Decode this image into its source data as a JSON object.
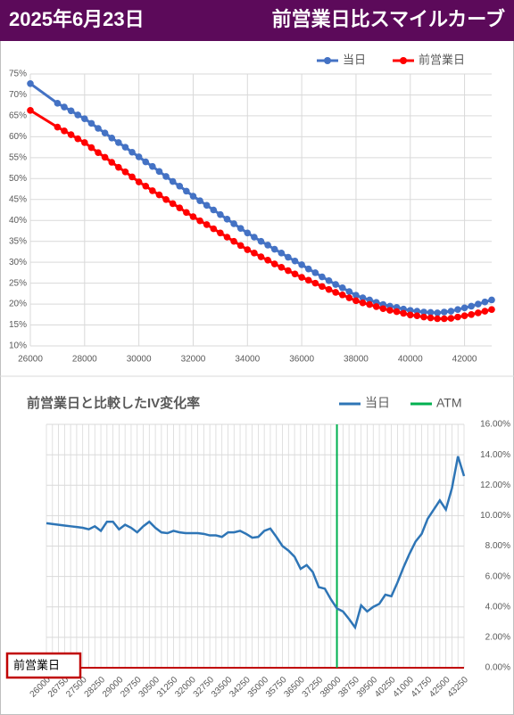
{
  "header": {
    "date": "2025年6月23日",
    "title": "前営業日比スマイルカーブ"
  },
  "chart_data": [
    {
      "type": "line",
      "markers": true,
      "grid": true,
      "x": [
        26000,
        27000,
        27250,
        27500,
        27750,
        28000,
        28250,
        28500,
        28750,
        29000,
        29250,
        29500,
        29750,
        30000,
        30250,
        30500,
        30750,
        31000,
        31250,
        31500,
        31750,
        32000,
        32250,
        32500,
        32750,
        33000,
        33250,
        33500,
        33750,
        34000,
        34250,
        34500,
        34750,
        35000,
        35250,
        35500,
        35750,
        36000,
        36250,
        36500,
        36750,
        37000,
        37250,
        37500,
        37750,
        38000,
        38250,
        38500,
        38750,
        39000,
        39250,
        39500,
        39750,
        40000,
        40250,
        40500,
        40750,
        41000,
        41250,
        41500,
        41750,
        42000,
        42250,
        42500,
        42750,
        43000
      ],
      "series": [
        {
          "name": "当日",
          "color": "#4472c4",
          "values": [
            72.7,
            68.0,
            67.1,
            66.2,
            65.2,
            64.3,
            63.2,
            62.0,
            60.9,
            59.7,
            58.6,
            57.5,
            56.3,
            55.2,
            54.0,
            52.9,
            51.7,
            50.5,
            49.3,
            48.2,
            47.0,
            45.8,
            44.7,
            43.6,
            42.5,
            41.4,
            40.3,
            39.2,
            38.1,
            37.0,
            36.0,
            35.0,
            34.1,
            33.1,
            32.2,
            31.2,
            30.3,
            29.4,
            28.4,
            27.5,
            26.5,
            25.6,
            24.7,
            23.9,
            23.0,
            22.1,
            21.5,
            21.0,
            20.4,
            19.9,
            19.5,
            19.2,
            18.8,
            18.5,
            18.3,
            18.1,
            18.0,
            17.9,
            18.1,
            18.3,
            18.7,
            19.1,
            19.5,
            20.0,
            20.5,
            21.0
          ]
        },
        {
          "name": "前営業日",
          "color": "#ff0000",
          "values": [
            66.3,
            62.3,
            61.4,
            60.5,
            59.5,
            58.6,
            57.4,
            56.2,
            55.1,
            53.9,
            52.7,
            51.6,
            50.4,
            49.2,
            48.2,
            47.1,
            46.1,
            45.0,
            44.0,
            43.0,
            41.9,
            40.9,
            39.9,
            39.0,
            38.0,
            37.0,
            36.0,
            35.0,
            34.0,
            33.0,
            32.2,
            31.3,
            30.5,
            29.6,
            28.8,
            28.0,
            27.2,
            26.4,
            25.7,
            25.0,
            24.2,
            23.5,
            22.8,
            22.2,
            21.5,
            20.8,
            20.3,
            19.9,
            19.4,
            18.9,
            18.5,
            18.2,
            17.8,
            17.4,
            17.2,
            16.9,
            16.7,
            16.5,
            16.5,
            16.6,
            16.9,
            17.2,
            17.5,
            17.9,
            18.3,
            18.7
          ]
        }
      ],
      "xlim": [
        26000,
        43000
      ],
      "xticks": [
        26000,
        28000,
        30000,
        32000,
        34000,
        36000,
        38000,
        40000,
        42000
      ],
      "ylim": [
        10,
        75
      ],
      "yticks": [
        {
          "value": 10,
          "label": "10%"
        },
        {
          "value": 15,
          "label": "15%"
        },
        {
          "value": 20,
          "label": "20%"
        },
        {
          "value": 25,
          "label": "25%"
        },
        {
          "value": 30,
          "label": "30%"
        },
        {
          "value": 35,
          "label": "35%"
        },
        {
          "value": 40,
          "label": "40%"
        },
        {
          "value": 45,
          "label": "45%"
        },
        {
          "value": 50,
          "label": "50%"
        },
        {
          "value": 55,
          "label": "55%"
        },
        {
          "value": 60,
          "label": "60%"
        },
        {
          "value": 65,
          "label": "65%"
        },
        {
          "value": 70,
          "label": "70%"
        },
        {
          "value": 75,
          "label": "75%"
        }
      ]
    },
    {
      "type": "line",
      "markers": false,
      "grid": true,
      "y_axis_side": "right",
      "title": "前営業日と比較したIV変化率",
      "x": [
        26000,
        26250,
        26500,
        26750,
        27000,
        27250,
        27500,
        27750,
        28000,
        28250,
        28500,
        28750,
        29000,
        29250,
        29500,
        29750,
        30000,
        30250,
        30500,
        30750,
        31000,
        31250,
        31500,
        31750,
        32000,
        32250,
        32500,
        32750,
        33000,
        33250,
        33500,
        33750,
        34000,
        34250,
        34500,
        34750,
        35000,
        35250,
        35500,
        35750,
        36000,
        36250,
        36500,
        36750,
        37000,
        37250,
        37500,
        37750,
        38000,
        38250,
        38500,
        38750,
        39000,
        39250,
        39500,
        39750,
        40000,
        40250,
        40500,
        40750,
        41000,
        41250,
        41500,
        41750,
        42000,
        42250,
        42500,
        42750,
        43000,
        43250
      ],
      "series": [
        {
          "name": "当日",
          "color": "#2e75b6",
          "values": [
            9.5,
            9.45,
            9.4,
            9.35,
            9.3,
            9.25,
            9.2,
            9.1,
            9.3,
            9.0,
            9.6,
            9.6,
            9.1,
            9.4,
            9.2,
            8.9,
            9.3,
            9.6,
            9.2,
            8.9,
            8.85,
            9.0,
            8.9,
            8.85,
            8.85,
            8.85,
            8.8,
            8.7,
            8.7,
            8.6,
            8.9,
            8.9,
            9.0,
            8.8,
            8.55,
            8.6,
            9.0,
            9.15,
            8.6,
            8.0,
            7.7,
            7.3,
            6.5,
            6.75,
            6.3,
            5.3,
            5.2,
            4.5,
            3.9,
            3.7,
            3.2,
            2.65,
            4.1,
            3.7,
            4.0,
            4.2,
            4.8,
            4.7,
            5.6,
            6.6,
            7.5,
            8.3,
            8.8,
            9.8,
            10.4,
            11.0,
            10.4,
            11.8,
            13.9,
            12.6
          ]
        }
      ],
      "vlines": [
        {
          "name": "ATM",
          "color": "#00b050",
          "x": 38000
        }
      ],
      "baseline": {
        "label": "前営業日",
        "value": 0,
        "color": "#c00000"
      },
      "xlim": [
        26000,
        43250
      ],
      "xticks": [
        26000,
        26750,
        27500,
        28250,
        29000,
        29750,
        30500,
        31250,
        32000,
        32750,
        33500,
        34250,
        35000,
        35750,
        36500,
        37250,
        38000,
        38750,
        39500,
        40250,
        41000,
        41750,
        42500,
        43250
      ],
      "ylim": [
        0,
        16
      ],
      "yticks": [
        {
          "value": 0,
          "label": "0.00%"
        },
        {
          "value": 2,
          "label": "2.00%"
        },
        {
          "value": 4,
          "label": "4.00%"
        },
        {
          "value": 6,
          "label": "6.00%"
        },
        {
          "value": 8,
          "label": "8.00%"
        },
        {
          "value": 10,
          "label": "10.00%"
        },
        {
          "value": 12,
          "label": "12.00%"
        },
        {
          "value": 14,
          "label": "14.00%"
        },
        {
          "value": 16,
          "label": "16.00%"
        }
      ]
    }
  ]
}
